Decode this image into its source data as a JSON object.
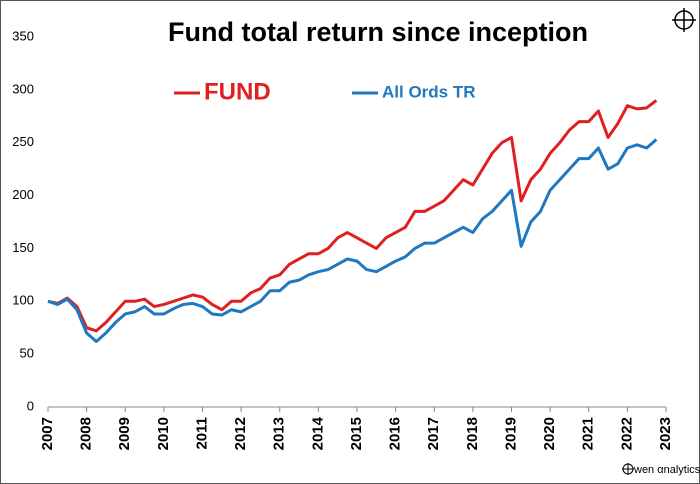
{
  "chart_data": {
    "type": "line",
    "title": "Fund total return since inception",
    "watermark": "wen αnalytics",
    "x": [
      2007.0,
      2007.25,
      2007.5,
      2007.75,
      2008.0,
      2008.25,
      2008.5,
      2008.75,
      2009.0,
      2009.25,
      2009.5,
      2009.75,
      2010.0,
      2010.25,
      2010.5,
      2010.75,
      2011.0,
      2011.25,
      2011.5,
      2011.75,
      2012.0,
      2012.25,
      2012.5,
      2012.75,
      2013.0,
      2013.25,
      2013.5,
      2013.75,
      2014.0,
      2014.25,
      2014.5,
      2014.75,
      2015.0,
      2015.25,
      2015.5,
      2015.75,
      2016.0,
      2016.25,
      2016.5,
      2016.75,
      2017.0,
      2017.25,
      2017.5,
      2017.75,
      2018.0,
      2018.25,
      2018.5,
      2018.75,
      2019.0,
      2019.25,
      2019.5,
      2019.75,
      2020.0,
      2020.25,
      2020.5,
      2020.75,
      2021.0,
      2021.25,
      2021.5,
      2021.75,
      2022.0,
      2022.25,
      2022.5,
      2022.75
    ],
    "series": [
      {
        "name": "FUND",
        "color": "#e02020",
        "values": [
          100,
          98,
          103,
          95,
          75,
          72,
          80,
          90,
          100,
          100,
          102,
          95,
          97,
          100,
          103,
          106,
          104,
          97,
          92,
          100,
          100,
          108,
          112,
          122,
          125,
          135,
          140,
          145,
          145,
          150,
          160,
          165,
          160,
          155,
          150,
          160,
          165,
          170,
          185,
          185,
          190,
          195,
          205,
          215,
          210,
          225,
          240,
          250,
          255,
          195,
          215,
          225,
          240,
          250,
          262,
          270,
          270,
          280,
          255,
          268,
          285,
          282,
          283,
          290
        ]
      },
      {
        "name": "All Ords TR",
        "color": "#1f78c0",
        "values": [
          100,
          97,
          102,
          92,
          70,
          62,
          70,
          80,
          88,
          90,
          95,
          88,
          88,
          93,
          97,
          98,
          95,
          88,
          87,
          92,
          90,
          95,
          100,
          110,
          110,
          118,
          120,
          125,
          128,
          130,
          135,
          140,
          138,
          130,
          128,
          133,
          138,
          142,
          150,
          155,
          155,
          160,
          165,
          170,
          165,
          178,
          185,
          195,
          205,
          152,
          175,
          185,
          205,
          215,
          225,
          235,
          235,
          245,
          225,
          230,
          245,
          248,
          245,
          253
        ]
      }
    ],
    "xlim": [
      2007,
      2023
    ],
    "xticks": [
      2007,
      2008,
      2009,
      2010,
      2011,
      2012,
      2013,
      2014,
      2015,
      2016,
      2017,
      2018,
      2019,
      2020,
      2021,
      2022,
      2023
    ],
    "ylim": [
      0,
      350
    ],
    "yticks": [
      0,
      50,
      100,
      150,
      200,
      250,
      300,
      350
    ],
    "grid": false
  }
}
